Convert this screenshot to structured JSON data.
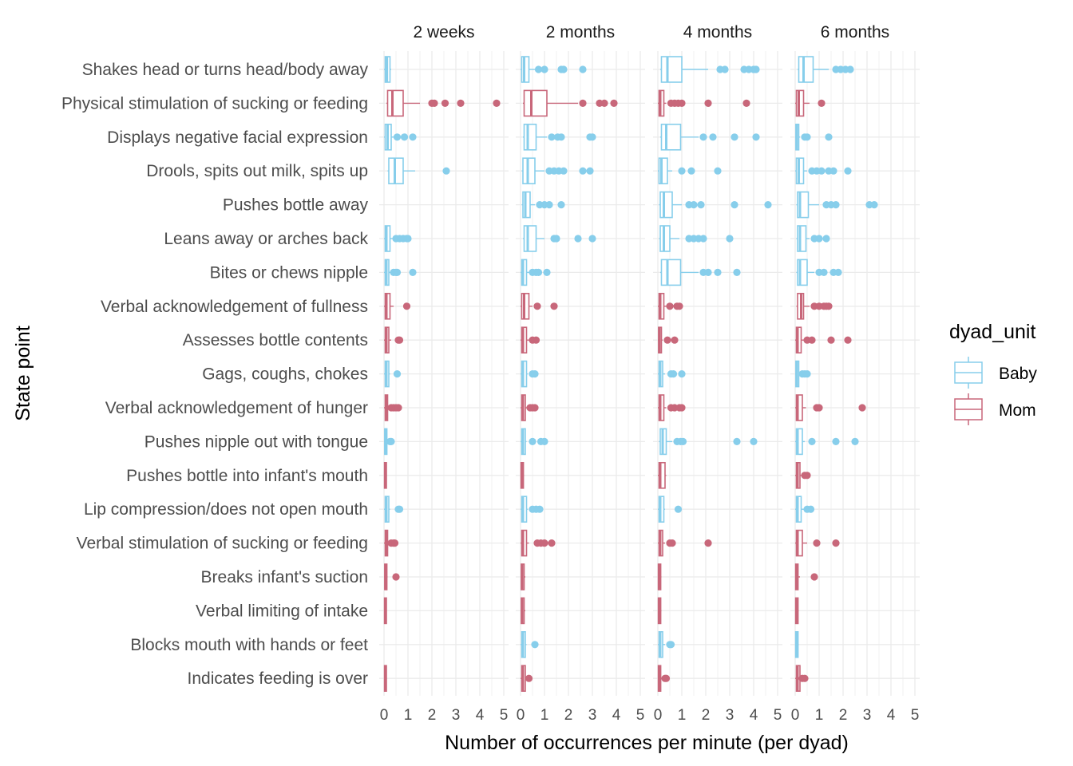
{
  "chart_data": {
    "type": "boxplot",
    "orientation": "horizontal",
    "xlabel": "Number of occurrences per minute (per dyad)",
    "ylabel": "State point",
    "xlim": [
      0,
      5
    ],
    "x_ticks": [
      "0",
      "1",
      "2",
      "3",
      "4",
      "5"
    ],
    "grid": true,
    "legend_title": "dyad_unit",
    "legend_position": "right",
    "legend": [
      {
        "name": "Baby",
        "color": "#87CEEB"
      },
      {
        "name": "Mom",
        "color": "#C8677A"
      }
    ],
    "categories": [
      "Shakes head or turns head/body away",
      "Physical stimulation of sucking or feeding",
      "Displays negative facial expression",
      "Drools, spits out milk, spits up",
      "Pushes bottle away",
      "Leans away or arches back",
      "Bites or chews nipple",
      "Verbal acknowledgement of fullness",
      "Assesses bottle contents",
      "Gags, coughs, chokes",
      "Verbal acknowledgement of hunger",
      "Pushes nipple out with tongue",
      "Pushes bottle into infant's mouth",
      "Lip compression/does not open mouth",
      "Verbal stimulation of sucking or feeding",
      "Breaks infant's suction",
      "Verbal limiting of intake",
      "Blocks mouth with hands or feet",
      "Indicates feeding is over"
    ],
    "category_unit": [
      "Baby",
      "Mom",
      "Baby",
      "Baby",
      "Baby",
      "Baby",
      "Baby",
      "Mom",
      "Mom",
      "Baby",
      "Mom",
      "Baby",
      "Mom",
      "Baby",
      "Mom",
      "Mom",
      "Mom",
      "Baby",
      "Mom"
    ],
    "panels": [
      {
        "title": "2 weeks",
        "boxes": [
          {
            "q1": 0.05,
            "median": 0.12,
            "q3": 0.25,
            "upper": 0.3,
            "outliers": []
          },
          {
            "q1": 0.15,
            "median": 0.35,
            "q3": 0.8,
            "upper": 1.5,
            "outliers": [
              2.0,
              2.1,
              2.55,
              3.2,
              4.7
            ]
          },
          {
            "q1": 0.05,
            "median": 0.15,
            "q3": 0.3,
            "upper": 0.4,
            "outliers": [
              0.55,
              0.85,
              1.2
            ]
          },
          {
            "q1": 0.2,
            "median": 0.45,
            "q3": 0.8,
            "upper": 1.3,
            "outliers": [
              2.6
            ]
          },
          null,
          {
            "q1": 0.05,
            "median": 0.1,
            "q3": 0.25,
            "upper": 0.35,
            "outliers": [
              0.5,
              0.65,
              0.8,
              0.95,
              1.0
            ]
          },
          {
            "q1": 0.05,
            "median": 0.1,
            "q3": 0.2,
            "upper": 0.3,
            "outliers": [
              0.4,
              0.5,
              0.55,
              1.2
            ]
          },
          {
            "q1": 0.05,
            "median": 0.1,
            "q3": 0.25,
            "upper": 0.4,
            "outliers": [
              0.95
            ]
          },
          {
            "q1": 0.05,
            "median": 0.1,
            "q3": 0.2,
            "upper": 0.3,
            "outliers": [
              0.6,
              0.65
            ]
          },
          {
            "q1": 0.05,
            "median": 0.1,
            "q3": 0.2,
            "upper": 0.25,
            "outliers": [
              0.55
            ]
          },
          {
            "q1": 0.05,
            "median": 0.1,
            "q3": 0.15,
            "upper": 0.2,
            "outliers": [
              0.3,
              0.4,
              0.5,
              0.6
            ]
          },
          {
            "q1": 0.03,
            "median": 0.06,
            "q3": 0.12,
            "upper": 0.15,
            "outliers": [
              0.25,
              0.3
            ]
          },
          {
            "q1": 0.02,
            "median": 0.05,
            "q3": 0.1,
            "upper": 0.12,
            "outliers": []
          },
          {
            "q1": 0.05,
            "median": 0.1,
            "q3": 0.2,
            "upper": 0.25,
            "outliers": [
              0.6,
              0.65
            ]
          },
          {
            "q1": 0.05,
            "median": 0.1,
            "q3": 0.15,
            "upper": 0.2,
            "outliers": [
              0.3,
              0.4,
              0.45
            ]
          },
          {
            "q1": 0.03,
            "median": 0.06,
            "q3": 0.12,
            "upper": 0.15,
            "outliers": [
              0.5
            ]
          },
          {
            "q1": 0.02,
            "median": 0.05,
            "q3": 0.1,
            "upper": 0.12,
            "outliers": []
          },
          null,
          {
            "q1": 0.02,
            "median": 0.05,
            "q3": 0.1,
            "upper": 0.12,
            "outliers": []
          }
        ]
      },
      {
        "title": "2 months",
        "boxes": [
          {
            "q1": 0.05,
            "median": 0.15,
            "q3": 0.35,
            "upper": 0.6,
            "outliers": [
              0.75,
              1.0,
              1.7,
              1.8,
              2.6
            ]
          },
          {
            "q1": 0.15,
            "median": 0.45,
            "q3": 1.1,
            "upper": 2.4,
            "outliers": [
              2.6,
              3.3,
              3.5,
              3.9
            ]
          },
          {
            "q1": 0.15,
            "median": 0.3,
            "q3": 0.65,
            "upper": 1.1,
            "outliers": [
              1.3,
              1.55,
              1.7,
              2.9,
              3.0
            ]
          },
          {
            "q1": 0.1,
            "median": 0.3,
            "q3": 0.6,
            "upper": 1.0,
            "outliers": [
              1.2,
              1.4,
              1.6,
              1.8,
              2.6,
              2.9
            ]
          },
          {
            "q1": 0.1,
            "median": 0.2,
            "q3": 0.4,
            "upper": 0.6,
            "outliers": [
              0.8,
              1.0,
              1.2,
              1.7
            ]
          },
          {
            "q1": 0.15,
            "median": 0.3,
            "q3": 0.65,
            "upper": 1.0,
            "outliers": [
              1.4,
              1.5,
              2.4,
              3.0
            ]
          },
          {
            "q1": 0.05,
            "median": 0.1,
            "q3": 0.25,
            "upper": 0.35,
            "outliers": [
              0.5,
              0.65,
              0.75,
              1.1
            ]
          },
          {
            "q1": 0.05,
            "median": 0.15,
            "q3": 0.35,
            "upper": 0.5,
            "outliers": [
              0.7,
              1.4
            ]
          },
          {
            "q1": 0.05,
            "median": 0.1,
            "q3": 0.25,
            "upper": 0.35,
            "outliers": [
              0.5,
              0.65
            ]
          },
          {
            "q1": 0.05,
            "median": 0.1,
            "q3": 0.25,
            "upper": 0.3,
            "outliers": [
              0.5,
              0.6
            ]
          },
          {
            "q1": 0.05,
            "median": 0.1,
            "q3": 0.2,
            "upper": 0.3,
            "outliers": [
              0.4,
              0.5,
              0.6
            ]
          },
          {
            "q1": 0.05,
            "median": 0.1,
            "q3": 0.2,
            "upper": 0.25,
            "outliers": [
              0.5,
              0.85,
              1.0
            ]
          },
          {
            "q1": 0.02,
            "median": 0.05,
            "q3": 0.12,
            "upper": 0.15,
            "outliers": []
          },
          {
            "q1": 0.05,
            "median": 0.1,
            "q3": 0.25,
            "upper": 0.3,
            "outliers": [
              0.5,
              0.65,
              0.8
            ]
          },
          {
            "q1": 0.05,
            "median": 0.1,
            "q3": 0.25,
            "upper": 0.35,
            "outliers": [
              0.7,
              0.85,
              1.0,
              1.3
            ]
          },
          {
            "q1": 0.03,
            "median": 0.07,
            "q3": 0.15,
            "upper": 0.2,
            "outliers": []
          },
          {
            "q1": 0.03,
            "median": 0.07,
            "q3": 0.15,
            "upper": 0.2,
            "outliers": []
          },
          {
            "q1": 0.05,
            "median": 0.1,
            "q3": 0.2,
            "upper": 0.25,
            "outliers": [
              0.6
            ]
          },
          {
            "q1": 0.05,
            "median": 0.1,
            "q3": 0.2,
            "upper": 0.25,
            "outliers": [
              0.35
            ]
          }
        ]
      },
      {
        "title": "4 months",
        "boxes": [
          {
            "q1": 0.15,
            "median": 0.4,
            "q3": 1.0,
            "upper": 2.1,
            "outliers": [
              2.6,
              2.8,
              3.6,
              3.8,
              4.0,
              4.1
            ]
          },
          {
            "q1": 0.05,
            "median": 0.1,
            "q3": 0.25,
            "upper": 0.35,
            "outliers": [
              0.55,
              0.7,
              0.85,
              1.0,
              2.1,
              3.7
            ]
          },
          {
            "q1": 0.15,
            "median": 0.35,
            "q3": 0.95,
            "upper": 1.7,
            "outliers": [
              1.9,
              2.3,
              3.2,
              4.1
            ]
          },
          {
            "q1": 0.05,
            "median": 0.15,
            "q3": 0.4,
            "upper": 0.6,
            "outliers": [
              1.0,
              1.4,
              2.5
            ]
          },
          {
            "q1": 0.1,
            "median": 0.25,
            "q3": 0.6,
            "upper": 1.0,
            "outliers": [
              1.3,
              1.5,
              1.8,
              3.2,
              4.6
            ]
          },
          {
            "q1": 0.1,
            "median": 0.25,
            "q3": 0.5,
            "upper": 0.9,
            "outliers": [
              1.3,
              1.5,
              1.7,
              1.9,
              3.0
            ]
          },
          {
            "q1": 0.15,
            "median": 0.4,
            "q3": 0.95,
            "upper": 1.7,
            "outliers": [
              1.9,
              2.1,
              2.5,
              3.3
            ]
          },
          {
            "q1": 0.05,
            "median": 0.1,
            "q3": 0.25,
            "upper": 0.35,
            "outliers": [
              0.5,
              0.8,
              0.9
            ]
          },
          {
            "q1": 0.03,
            "median": 0.07,
            "q3": 0.15,
            "upper": 0.2,
            "outliers": [
              0.4,
              0.7
            ]
          },
          {
            "q1": 0.05,
            "median": 0.1,
            "q3": 0.2,
            "upper": 0.3,
            "outliers": [
              0.55,
              0.65,
              1.0
            ]
          },
          {
            "q1": 0.05,
            "median": 0.1,
            "q3": 0.25,
            "upper": 0.35,
            "outliers": [
              0.55,
              0.7,
              0.9,
              1.0
            ]
          },
          {
            "q1": 0.1,
            "median": 0.2,
            "q3": 0.35,
            "upper": 0.6,
            "outliers": [
              0.8,
              0.95,
              1.05,
              3.3,
              4.0
            ]
          },
          {
            "q1": 0.05,
            "median": 0.1,
            "q3": 0.3,
            "upper": 0.35,
            "outliers": []
          },
          {
            "q1": 0.05,
            "median": 0.1,
            "q3": 0.25,
            "upper": 0.3,
            "outliers": [
              0.85
            ]
          },
          {
            "q1": 0.05,
            "median": 0.1,
            "q3": 0.2,
            "upper": 0.3,
            "outliers": [
              0.5,
              0.6,
              2.1
            ]
          },
          {
            "q1": 0.02,
            "median": 0.05,
            "q3": 0.12,
            "upper": 0.15,
            "outliers": []
          },
          {
            "q1": 0.02,
            "median": 0.05,
            "q3": 0.12,
            "upper": 0.15,
            "outliers": []
          },
          {
            "q1": 0.05,
            "median": 0.1,
            "q3": 0.2,
            "upper": 0.3,
            "outliers": [
              0.5,
              0.55
            ]
          },
          {
            "q1": 0.02,
            "median": 0.05,
            "q3": 0.12,
            "upper": 0.2,
            "outliers": [
              0.3,
              0.35
            ]
          }
        ]
      },
      {
        "title": "6 months",
        "boxes": [
          {
            "q1": 0.15,
            "median": 0.35,
            "q3": 0.75,
            "upper": 1.4,
            "outliers": [
              1.7,
              1.9,
              2.1,
              2.3
            ]
          },
          {
            "q1": 0.05,
            "median": 0.15,
            "q3": 0.35,
            "upper": 0.6,
            "outliers": [
              1.1
            ]
          },
          {
            "q1": 0.03,
            "median": 0.07,
            "q3": 0.15,
            "upper": 0.2,
            "outliers": [
              0.4,
              0.5,
              1.4
            ]
          },
          {
            "q1": 0.05,
            "median": 0.15,
            "q3": 0.35,
            "upper": 0.5,
            "outliers": [
              0.7,
              0.9,
              1.1,
              1.4,
              1.6,
              2.2
            ]
          },
          {
            "q1": 0.1,
            "median": 0.2,
            "q3": 0.55,
            "upper": 1.0,
            "outliers": [
              1.3,
              1.5,
              1.7,
              3.1,
              3.3
            ]
          },
          {
            "q1": 0.1,
            "median": 0.2,
            "q3": 0.45,
            "upper": 0.6,
            "outliers": [
              0.8,
              1.0,
              1.3
            ]
          },
          {
            "q1": 0.1,
            "median": 0.2,
            "q3": 0.5,
            "upper": 0.8,
            "outliers": [
              1.0,
              1.2,
              1.6,
              1.8
            ]
          },
          {
            "q1": 0.1,
            "median": 0.25,
            "q3": 0.35,
            "upper": 0.6,
            "outliers": [
              0.8,
              1.0,
              1.2,
              1.3,
              1.4
            ]
          },
          {
            "q1": 0.05,
            "median": 0.1,
            "q3": 0.25,
            "upper": 0.35,
            "outliers": [
              0.5,
              0.7,
              1.5,
              2.2
            ]
          },
          {
            "q1": 0.03,
            "median": 0.07,
            "q3": 0.15,
            "upper": 0.2,
            "outliers": [
              0.3,
              0.4,
              0.5
            ]
          },
          {
            "q1": 0.05,
            "median": 0.1,
            "q3": 0.3,
            "upper": 0.45,
            "outliers": [
              0.9,
              1.0,
              2.8
            ]
          },
          {
            "q1": 0.05,
            "median": 0.1,
            "q3": 0.3,
            "upper": 0.4,
            "outliers": [
              0.7,
              1.7,
              2.5
            ]
          },
          {
            "q1": 0.05,
            "median": 0.1,
            "q3": 0.2,
            "upper": 0.3,
            "outliers": [
              0.4,
              0.5
            ]
          },
          {
            "q1": 0.05,
            "median": 0.1,
            "q3": 0.25,
            "upper": 0.35,
            "outliers": [
              0.5,
              0.65
            ]
          },
          {
            "q1": 0.05,
            "median": 0.1,
            "q3": 0.3,
            "upper": 0.5,
            "outliers": [
              0.9,
              1.7
            ]
          },
          {
            "q1": 0.02,
            "median": 0.05,
            "q3": 0.12,
            "upper": 0.2,
            "outliers": [
              0.8
            ]
          },
          {
            "q1": 0.02,
            "median": 0.05,
            "q3": 0.12,
            "upper": 0.15,
            "outliers": []
          },
          {
            "q1": 0.02,
            "median": 0.05,
            "q3": 0.12,
            "upper": 0.15,
            "outliers": []
          },
          {
            "q1": 0.05,
            "median": 0.1,
            "q3": 0.2,
            "upper": 0.25,
            "outliers": [
              0.3,
              0.4
            ]
          }
        ]
      }
    ]
  }
}
